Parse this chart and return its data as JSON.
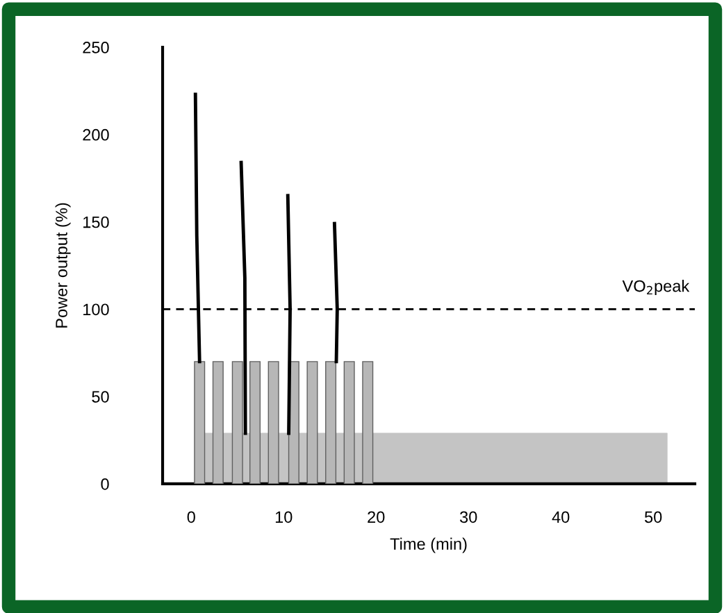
{
  "chart_data": {
    "type": "bar",
    "xlabel": "Time (min)",
    "ylabel": "Power output (%)",
    "xlim": [
      -3.1,
      54.5
    ],
    "ylim": [
      0,
      250
    ],
    "xticks": [
      0,
      10,
      20,
      30,
      40,
      50
    ],
    "yticks": [
      0,
      50,
      100,
      150,
      200,
      250
    ],
    "grid": false,
    "legend": false,
    "series": [
      {
        "type": "area",
        "color": "#c4c4c4",
        "x": [
          1.5,
          51.5
        ],
        "values": [
          29,
          29
        ]
      },
      {
        "color": "#b7b7b7",
        "x": [
          0.9,
          2.9,
          5.0,
          6.9,
          8.9,
          11.1,
          13.1,
          15.1,
          17.1,
          19.1
        ],
        "values": [
          70,
          70,
          70,
          70,
          70,
          70,
          70,
          70,
          70,
          70
        ]
      },
      {
        "type": "line",
        "color": "#000000",
        "x": [
          0.45,
          0.6,
          0.9
        ],
        "values": [
          223,
          142,
          70
        ]
      },
      {
        "type": "line",
        "color": "#000000",
        "x": [
          5.4,
          5.8,
          5.86
        ],
        "values": [
          184,
          118,
          29
        ]
      },
      {
        "type": "line",
        "color": "#000000",
        "x": [
          10.45,
          10.7,
          10.55
        ],
        "values": [
          165,
          100,
          29
        ]
      },
      {
        "type": "line",
        "color": "#000000",
        "x": [
          15.5,
          15.8,
          15.7
        ],
        "values": [
          149,
          100,
          70
        ]
      }
    ],
    "ref_lines": [
      {
        "axis": "y",
        "value": 100,
        "label": "VO$_{2}$peak",
        "line_style": "dashed",
        "color": "#000000"
      }
    ]
  }
}
